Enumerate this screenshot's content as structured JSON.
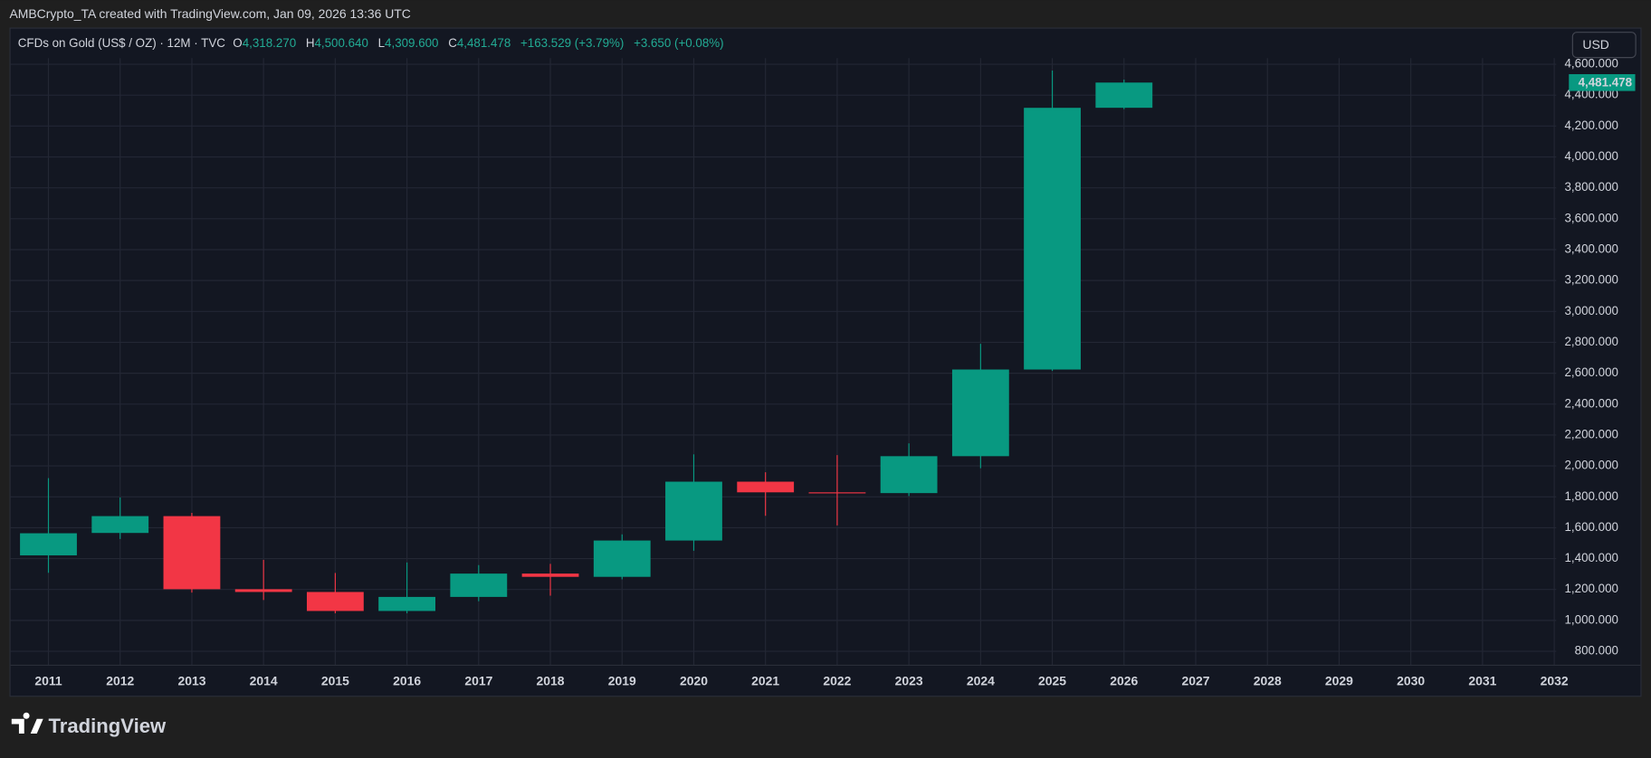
{
  "header": {
    "text": "AMBCrypto_TA created with TradingView.com, Jan 09, 2026 13:36 UTC"
  },
  "legend": {
    "symbol": "CFDs on Gold (US$ / OZ) · 12M · TVC",
    "items": [
      {
        "key": "O",
        "value": "4,318.270"
      },
      {
        "key": "H",
        "value": "4,500.640"
      },
      {
        "key": "L",
        "value": "4,309.600"
      },
      {
        "key": "C",
        "value": "4,481.478"
      }
    ],
    "change": "+163.529 (+3.79%)",
    "extra": "+3.650 (+0.08%)"
  },
  "currency_button": "USD",
  "last_price_label": "4,481.478",
  "brand": "TradingView",
  "chart_data": {
    "type": "candlestick",
    "categories": [
      "2011",
      "2012",
      "2013",
      "2014",
      "2015",
      "2016",
      "2017",
      "2018",
      "2019",
      "2020",
      "2021",
      "2022",
      "2023",
      "2024",
      "2025",
      "2026",
      "2027",
      "2028",
      "2029",
      "2030",
      "2031",
      "2032"
    ],
    "series": [
      {
        "name": "open",
        "values": [
          1421,
          1566,
          1675,
          1202,
          1184,
          1061,
          1152,
          1303,
          1282,
          1517,
          1898,
          1829,
          1824,
          2063,
          2624,
          4318.27,
          null,
          null,
          null,
          null,
          null,
          null
        ]
      },
      {
        "name": "high",
        "values": [
          1921,
          1796,
          1696,
          1392,
          1307,
          1375,
          1358,
          1366,
          1557,
          2075,
          1959,
          2070,
          2146,
          2790,
          4559,
          4500.64,
          null,
          null,
          null,
          null,
          null,
          null
        ]
      },
      {
        "name": "low",
        "values": [
          1308,
          1527,
          1180,
          1132,
          1046,
          1046,
          1124,
          1160,
          1266,
          1451,
          1677,
          1615,
          1805,
          1985,
          2615,
          4309.6,
          null,
          null,
          null,
          null,
          null,
          null
        ]
      },
      {
        "name": "close",
        "values": [
          1564,
          1675,
          1202,
          1184,
          1061,
          1152,
          1303,
          1282,
          1517,
          1898,
          1829,
          1824,
          2063,
          2624,
          4318,
          4481.478,
          null,
          null,
          null,
          null,
          null,
          null
        ]
      }
    ],
    "up_color": "#089981",
    "down_color": "#f23645",
    "ylim": [
      710,
      4640
    ],
    "yticks": [
      {
        "value": 800,
        "label": "800.000"
      },
      {
        "value": 1000,
        "label": "1,000.000"
      },
      {
        "value": 1200,
        "label": "1,200.000"
      },
      {
        "value": 1400,
        "label": "1,400.000"
      },
      {
        "value": 1600,
        "label": "1,600.000"
      },
      {
        "value": 1800,
        "label": "1,800.000"
      },
      {
        "value": 2000,
        "label": "2,000.000"
      },
      {
        "value": 2200,
        "label": "2,200.000"
      },
      {
        "value": 2400,
        "label": "2,400.000"
      },
      {
        "value": 2600,
        "label": "2,600.000"
      },
      {
        "value": 2800,
        "label": "2,800.000"
      },
      {
        "value": 3000,
        "label": "3,000.000"
      },
      {
        "value": 3200,
        "label": "3,200.000"
      },
      {
        "value": 3400,
        "label": "3,400.000"
      },
      {
        "value": 3600,
        "label": "3,600.000"
      },
      {
        "value": 3800,
        "label": "3,800.000"
      },
      {
        "value": 4000,
        "label": "4,000.000"
      },
      {
        "value": 4200,
        "label": "4,200.000"
      },
      {
        "value": 4400,
        "label": "4,400.000"
      },
      {
        "value": 4600,
        "label": "4,600.000"
      }
    ],
    "grid": true
  }
}
